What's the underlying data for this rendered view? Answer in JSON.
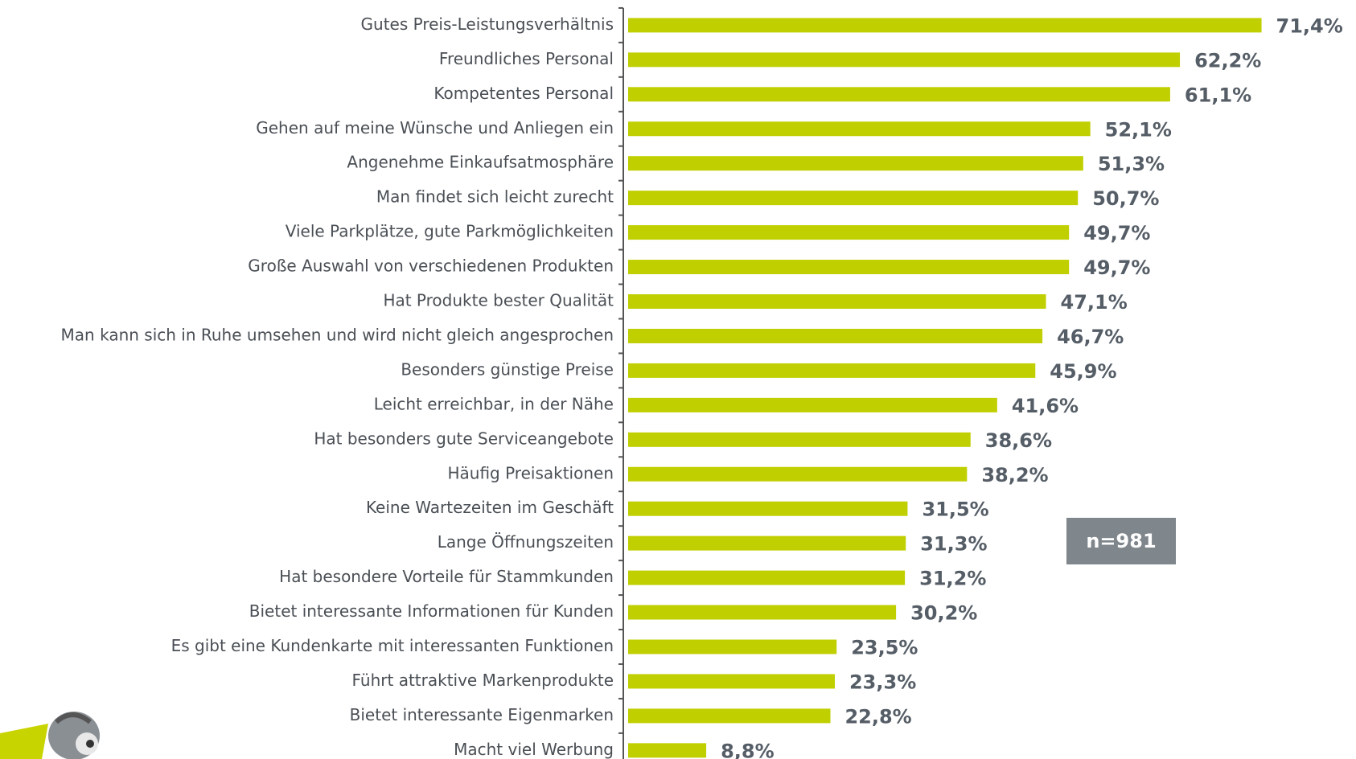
{
  "chart_data": {
    "type": "bar",
    "orientation": "horizontal",
    "color": "#c0cf00",
    "categories": [
      "Gutes Preis-Leistungsverhältnis",
      "Freundliches Personal",
      "Kompetentes Personal",
      "Gehen auf meine Wünsche und Anliegen ein",
      "Angenehme Einkaufsatmosphäre",
      "Man findet sich leicht zurecht",
      "Viele Parkplätze, gute Parkmöglichkeiten",
      "Große Auswahl von verschiedenen Produkten",
      "Hat Produkte bester Qualität",
      "Man kann sich in Ruhe umsehen und wird nicht gleich angesprochen",
      "Besonders günstige Preise",
      "Leicht erreichbar, in der Nähe",
      "Hat besonders gute Serviceangebote",
      "Häufig Preisaktionen",
      "Keine Wartezeiten im Geschäft",
      "Lange Öffnungszeiten",
      "Hat besondere Vorteile für Stammkunden",
      "Bietet interessante Informationen für Kunden",
      "Es gibt eine Kundenkarte mit interessanten Funktionen",
      "Führt attraktive Markenprodukte",
      "Bietet interessante Eigenmarken",
      "Macht viel Werbung"
    ],
    "values": [
      71.4,
      62.2,
      61.1,
      52.1,
      51.3,
      50.7,
      49.7,
      49.7,
      47.1,
      46.7,
      45.9,
      41.6,
      38.6,
      38.2,
      31.5,
      31.3,
      31.2,
      30.2,
      23.5,
      23.3,
      22.8,
      8.8
    ],
    "value_labels": [
      "71,4%",
      "62,2%",
      "61,1%",
      "52,1%",
      "51,3%",
      "50,7%",
      "49,7%",
      "49,7%",
      "47,1%",
      "46,7%",
      "45,9%",
      "41,6%",
      "38,6%",
      "38,2%",
      "31,5%",
      "31,3%",
      "31,2%",
      "30,2%",
      "23,5%",
      "23,3%",
      "22,8%",
      "8,8%"
    ],
    "annotation": "n=981"
  }
}
